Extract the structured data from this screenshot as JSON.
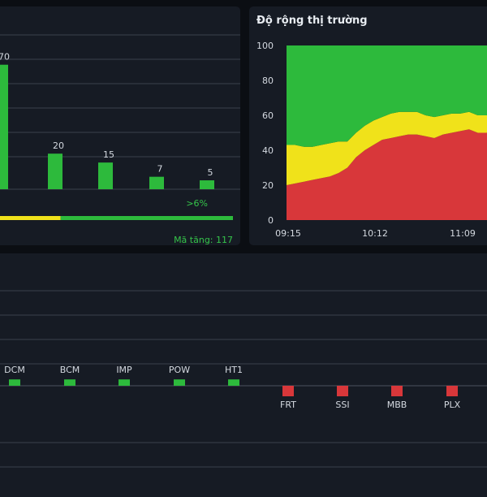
{
  "colors": {
    "up": "#2dba3c",
    "flat": "#f0e21a",
    "down": "#d8373a",
    "grid": "#3a414c",
    "text": "#d4d9e0"
  },
  "left_panel": {
    "up_label": ">6%",
    "rising_count_text": "Mã tăng: 117",
    "ratio": {
      "flat_fraction": 0.26,
      "up_fraction": 0.74
    }
  },
  "chart_data": [
    {
      "type": "bar",
      "title": "",
      "categories": [
        "",
        "",
        "",
        "",
        ""
      ],
      "values": [
        70,
        20,
        15,
        7,
        5
      ],
      "data_labels": [
        "70",
        "20",
        "15",
        "7",
        "5"
      ],
      "ylim": [
        0,
        100
      ]
    },
    {
      "type": "area",
      "title": "Độ rộng thị trường",
      "x_ticks": [
        "09:15",
        "10:12",
        "11:09"
      ],
      "y_ticks": [
        "0",
        "20",
        "40",
        "60",
        "80",
        "100"
      ],
      "ylim": [
        0,
        100
      ],
      "stacked": true,
      "series": [
        {
          "color": "#d8373a",
          "values": [
            20,
            21,
            22,
            23,
            24,
            25,
            27,
            30,
            36,
            40,
            43,
            46,
            47,
            48,
            49,
            49,
            48,
            47,
            49,
            50,
            51,
            52,
            50,
            50,
            51
          ]
        },
        {
          "color": "#f0e21a",
          "values": [
            23,
            22,
            20,
            19,
            19,
            19,
            18,
            15,
            14,
            14,
            14,
            13,
            14,
            14,
            13,
            13,
            12,
            12,
            11,
            11,
            10,
            10,
            10,
            10,
            10
          ]
        },
        {
          "color": "#2dba3c",
          "values": [
            57,
            57,
            58,
            58,
            57,
            56,
            55,
            55,
            50,
            46,
            43,
            41,
            39,
            38,
            38,
            38,
            40,
            41,
            40,
            39,
            39,
            38,
            40,
            40,
            39
          ]
        }
      ]
    },
    {
      "type": "bar",
      "title": "",
      "categories": [
        "DCM",
        "BCM",
        "IMP",
        "POW",
        "HT1",
        "FRT",
        "SSI",
        "MBB",
        "PLX"
      ],
      "values": [
        0.6,
        0.6,
        0.6,
        0.6,
        0.6,
        -1.0,
        -1.0,
        -1.0,
        -1.0
      ]
    }
  ]
}
